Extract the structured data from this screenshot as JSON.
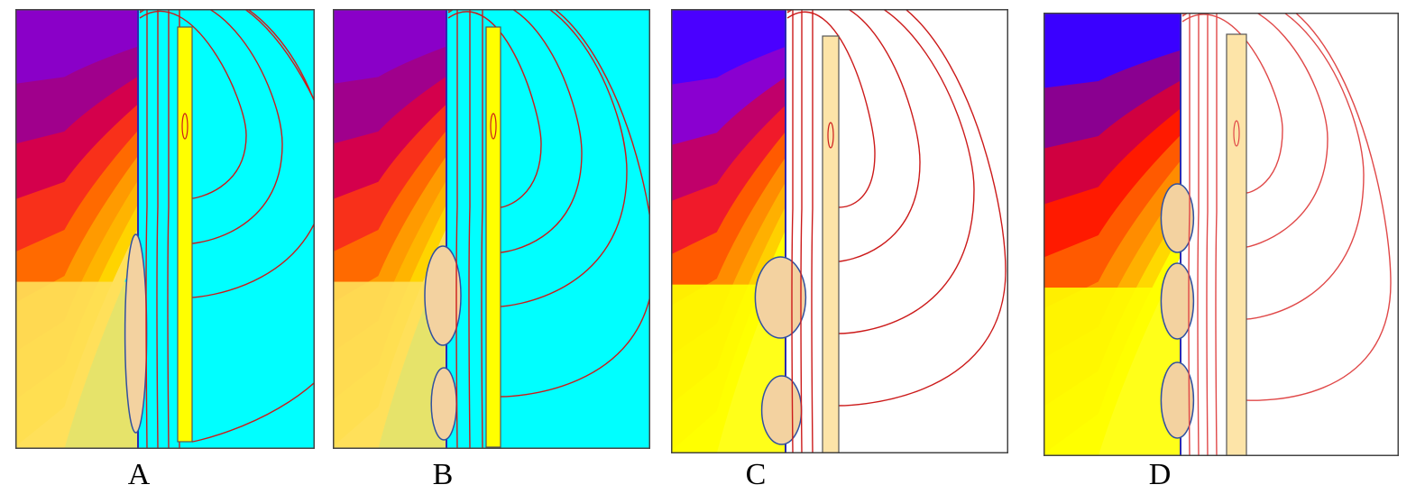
{
  "panels": [
    {
      "id": "A",
      "label": "A",
      "field_bg": "#00ffff",
      "bar_color": "#ffff00",
      "field_line_color": "#cc1a1a",
      "gradient": [
        "#8a00c8",
        "#a0008c",
        "#d4004c",
        "#f8301a",
        "#ff6a00",
        "#ff9a00",
        "#ffb400",
        "#ffd400",
        "#ffe05a"
      ]
    },
    {
      "id": "B",
      "label": "B",
      "field_bg": "#00ffff",
      "bar_color": "#ffff00",
      "field_line_color": "#cc1a1a",
      "gradient": [
        "#8a00c8",
        "#a0008c",
        "#d4004c",
        "#f8301a",
        "#ff6a00",
        "#ff9a00",
        "#ffb400",
        "#ffd400",
        "#ffe05a"
      ]
    },
    {
      "id": "C",
      "label": "C",
      "field_bg": "#ffffff",
      "bar_color": "#fde4a8",
      "field_line_color": "#cc1a1a",
      "gradient": [
        "#4a00ff",
        "#8a00d0",
        "#c0006a",
        "#f01a2a",
        "#ff5a00",
        "#ff8c00",
        "#ffb000",
        "#ffd000",
        "#ffff00"
      ]
    },
    {
      "id": "D",
      "label": "D",
      "field_bg": "#ffffff",
      "bar_color": "#fde4a8",
      "field_line_color": "#e04848",
      "gradient": [
        "#3a00ff",
        "#8a0090",
        "#d00040",
        "#ff1a00",
        "#ff5a00",
        "#ff8c00",
        "#ffb000",
        "#ffd800",
        "#ffff00"
      ]
    }
  ]
}
